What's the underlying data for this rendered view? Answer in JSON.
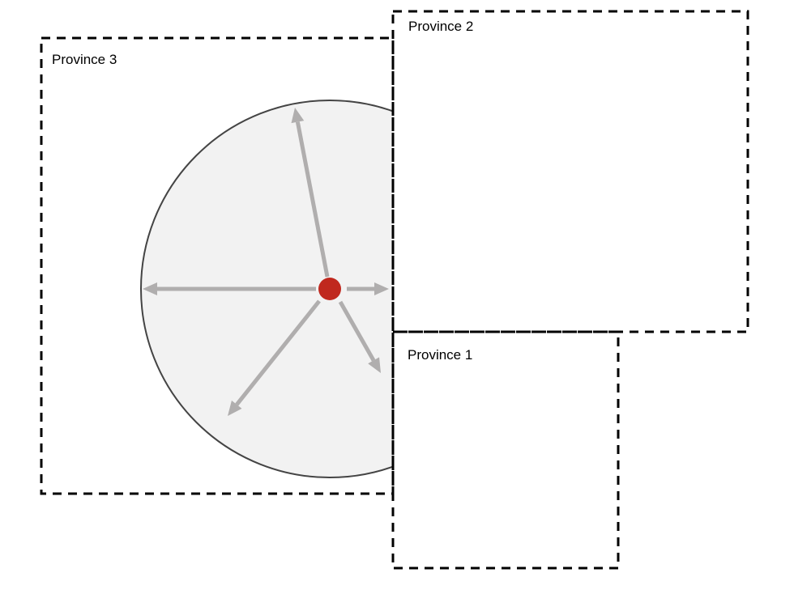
{
  "colors": {
    "circle_fill": "#f2f2f2",
    "circle_stroke": "#444444",
    "arrow": "#b0aeae",
    "origin_dot": "#c0281e",
    "border": "#000000"
  },
  "provinces": [
    {
      "label": "Province 1"
    },
    {
      "label": "Province 2"
    },
    {
      "label": "Province 3"
    }
  ]
}
